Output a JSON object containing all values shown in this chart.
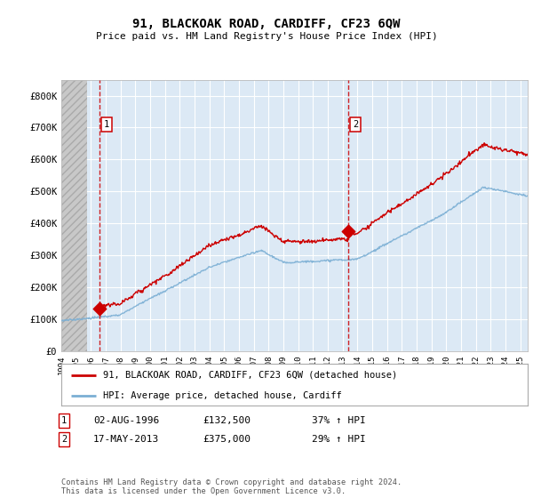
{
  "title": "91, BLACKOAK ROAD, CARDIFF, CF23 6QW",
  "subtitle": "Price paid vs. HM Land Registry's House Price Index (HPI)",
  "background_color": "#ffffff",
  "plot_bg_color": "#dce9f5",
  "grid_color": "#ffffff",
  "hpi_line_color": "#7bafd4",
  "price_line_color": "#cc0000",
  "sale1": {
    "date": 1996.58,
    "price": 132500,
    "label": "1"
  },
  "sale2": {
    "date": 2013.37,
    "price": 375000,
    "label": "2"
  },
  "xmin": 1994.0,
  "xmax": 2025.5,
  "ymin": 0,
  "ymax": 850000,
  "hatch_xmax": 1995.75,
  "yticks": [
    0,
    100000,
    200000,
    300000,
    400000,
    500000,
    600000,
    700000,
    800000
  ],
  "ytick_labels": [
    "£0",
    "£100K",
    "£200K",
    "£300K",
    "£400K",
    "£500K",
    "£600K",
    "£700K",
    "£800K"
  ],
  "legend_label1": "91, BLACKOAK ROAD, CARDIFF, CF23 6QW (detached house)",
  "legend_label2": "HPI: Average price, detached house, Cardiff",
  "table_row1": [
    "1",
    "02-AUG-1996",
    "£132,500",
    "37% ↑ HPI"
  ],
  "table_row2": [
    "2",
    "17-MAY-2013",
    "£375,000",
    "29% ↑ HPI"
  ],
  "footnote": "Contains HM Land Registry data © Crown copyright and database right 2024.\nThis data is licensed under the Open Government Licence v3.0."
}
